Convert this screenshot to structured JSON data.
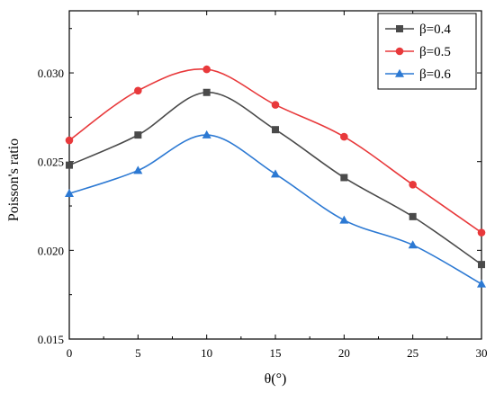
{
  "chart_data": {
    "type": "line",
    "title": "",
    "xlabel": "θ(°)",
    "ylabel": "Poisson's ratio",
    "xlim": [
      0,
      30
    ],
    "ylim": [
      0.015,
      0.0335
    ],
    "x_ticks": [
      0,
      5,
      10,
      15,
      20,
      25,
      30
    ],
    "x_tick_labels": [
      "0",
      "5",
      "10",
      "15",
      "20",
      "25",
      "30"
    ],
    "y_ticks": [
      0.015,
      0.02,
      0.025,
      0.03
    ],
    "y_tick_labels": [
      "0.015",
      "0.020",
      "0.025",
      "0.030"
    ],
    "grid": false,
    "legend_position": "top-right",
    "smooth": true,
    "x": [
      0,
      5,
      10,
      15,
      20,
      25,
      30
    ],
    "series": [
      {
        "name": "β=0.4",
        "color": "#4a4a4a",
        "marker": "square",
        "values": [
          0.0248,
          0.0265,
          0.0289,
          0.0268,
          0.0241,
          0.0219,
          0.0192
        ]
      },
      {
        "name": "β=0.5",
        "color": "#e8393b",
        "marker": "circle",
        "values": [
          0.0262,
          0.029,
          0.0302,
          0.0282,
          0.0264,
          0.0237,
          0.021
        ]
      },
      {
        "name": "β=0.6",
        "color": "#2c79d3",
        "marker": "triangle",
        "values": [
          0.0232,
          0.0245,
          0.0265,
          0.0243,
          0.0217,
          0.0203,
          0.0181
        ]
      }
    ]
  }
}
